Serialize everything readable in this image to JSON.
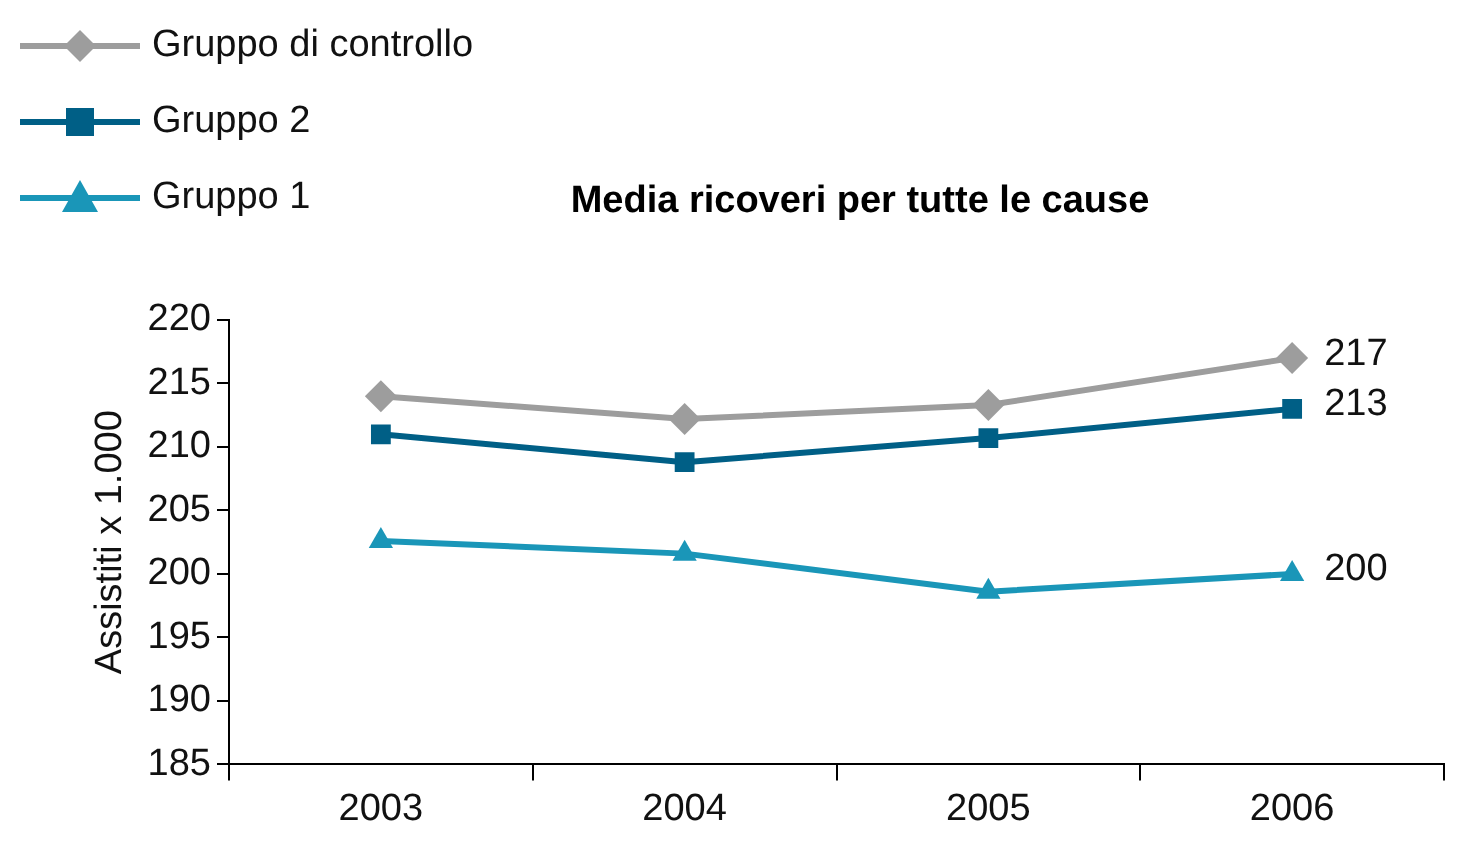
{
  "chart_data": {
    "type": "line",
    "title": "Media ricoveri per tutte le cause",
    "ylabel": "Assistiti x 1.000",
    "categories": [
      "2003",
      "2004",
      "2005",
      "2006"
    ],
    "series": [
      {
        "name": "Gruppo di controllo",
        "color": "#9d9d9d",
        "marker": "diamond",
        "values": [
          214,
          212.2,
          213.3,
          217
        ],
        "value_labels": [
          null,
          null,
          null,
          "217"
        ]
      },
      {
        "name": "Gruppo 2",
        "color": "#005f86",
        "marker": "square",
        "values": [
          211,
          208.8,
          210.7,
          213
        ],
        "value_labels": [
          null,
          null,
          null,
          "213"
        ]
      },
      {
        "name": "Gruppo 1",
        "color": "#1a96b8",
        "marker": "triangle",
        "values": [
          202.6,
          201.6,
          198.6,
          200
        ],
        "value_labels": [
          null,
          null,
          null,
          "200"
        ]
      }
    ],
    "ylim": [
      185,
      220
    ],
    "yticks": [
      185,
      190,
      195,
      200,
      205,
      210,
      215,
      220
    ],
    "grid": false,
    "legend": "top left"
  }
}
